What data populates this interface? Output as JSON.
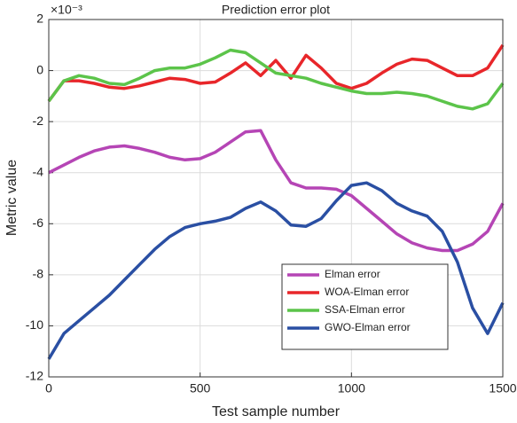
{
  "chart_data": {
    "type": "line",
    "title": "Prediction error plot",
    "xlabel": "Test sample number",
    "ylabel": "Metric value",
    "axis_multiplier": "×10⁻³",
    "x": [
      0,
      50,
      100,
      150,
      200,
      250,
      300,
      350,
      400,
      450,
      500,
      550,
      600,
      650,
      700,
      750,
      800,
      850,
      900,
      950,
      1000,
      1050,
      1100,
      1150,
      1200,
      1250,
      1300,
      1350,
      1400,
      1450,
      1500
    ],
    "series": [
      {
        "name": "Elman error",
        "color": "#b545b5",
        "values": [
          -4.0,
          -3.7,
          -3.4,
          -3.15,
          -3.0,
          -2.95,
          -3.05,
          -3.2,
          -3.4,
          -3.5,
          -3.45,
          -3.2,
          -2.8,
          -2.4,
          -2.35,
          -3.5,
          -4.4,
          -4.6,
          -4.6,
          -4.65,
          -4.9,
          -5.4,
          -5.9,
          -6.4,
          -6.75,
          -6.95,
          -7.05,
          -7.05,
          -6.8,
          -6.3,
          -5.2
        ]
      },
      {
        "name": "WOA-Elman error",
        "color": "#e8262a",
        "values": [
          -1.2,
          -0.4,
          -0.4,
          -0.5,
          -0.65,
          -0.7,
          -0.6,
          -0.45,
          -0.3,
          -0.35,
          -0.5,
          -0.45,
          -0.1,
          0.3,
          -0.2,
          0.4,
          -0.3,
          0.6,
          0.1,
          -0.5,
          -0.7,
          -0.5,
          -0.1,
          0.25,
          0.45,
          0.4,
          0.1,
          -0.2,
          -0.2,
          0.1,
          1.0
        ]
      },
      {
        "name": "SSA-Elman error",
        "color": "#5cc44a",
        "values": [
          -1.2,
          -0.4,
          -0.2,
          -0.3,
          -0.5,
          -0.55,
          -0.3,
          0.0,
          0.1,
          0.1,
          0.25,
          0.5,
          0.8,
          0.7,
          0.3,
          -0.1,
          -0.2,
          -0.3,
          -0.5,
          -0.65,
          -0.8,
          -0.9,
          -0.9,
          -0.85,
          -0.9,
          -1.0,
          -1.2,
          -1.4,
          -1.5,
          -1.3,
          -0.5
        ]
      },
      {
        "name": "GWO-Elman error",
        "color": "#2a4fa3",
        "values": [
          -11.3,
          -10.3,
          -9.8,
          -9.3,
          -8.8,
          -8.2,
          -7.6,
          -7.0,
          -6.5,
          -6.15,
          -6.0,
          -5.9,
          -5.75,
          -5.4,
          -5.15,
          -5.5,
          -6.05,
          -6.1,
          -5.8,
          -5.1,
          -4.5,
          -4.4,
          -4.7,
          -5.2,
          -5.5,
          -5.7,
          -6.3,
          -7.5,
          -9.3,
          -10.3,
          -9.1
        ]
      }
    ],
    "xlim": [
      0,
      1500
    ],
    "ylim": [
      -12,
      2
    ],
    "xticks": [
      0,
      500,
      1000,
      1500
    ],
    "yticks": [
      -12,
      -10,
      -8,
      -6,
      -4,
      -2,
      0,
      2
    ],
    "grid": true,
    "legend": "lower right"
  }
}
